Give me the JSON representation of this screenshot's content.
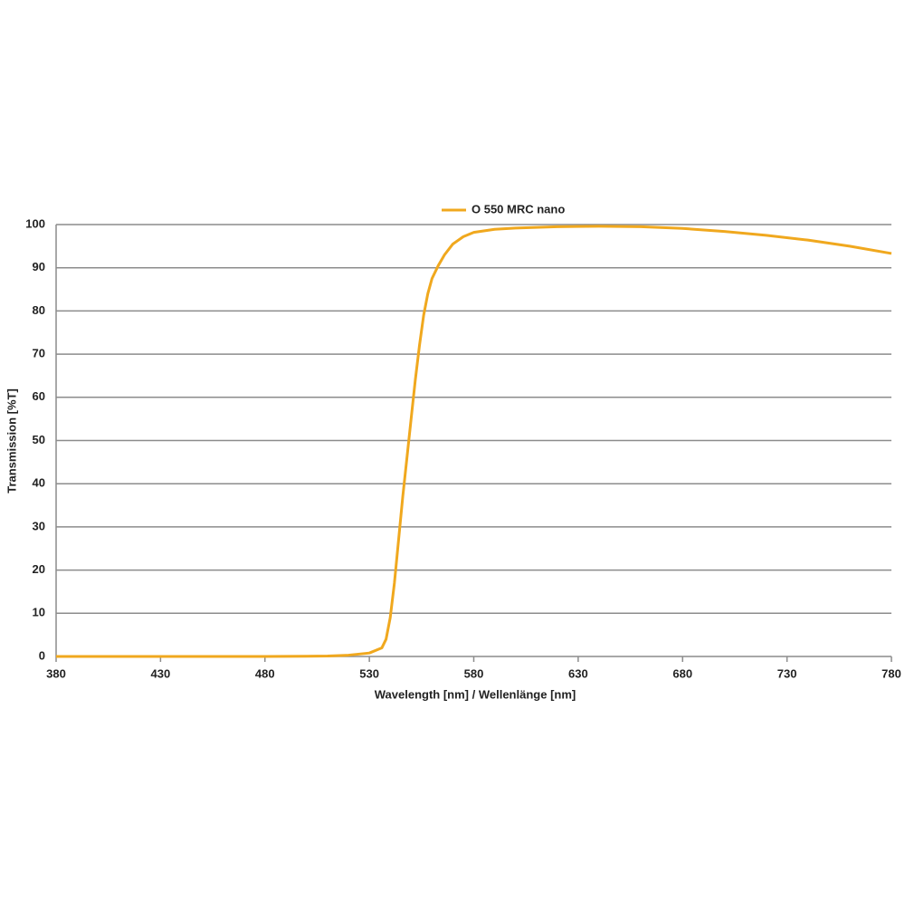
{
  "chart_data": {
    "type": "line",
    "x_label": "Wavelength [nm] / Wellenlänge [nm]",
    "y_label": "Transmission [%T]",
    "x": [
      380,
      400,
      420,
      440,
      460,
      480,
      500,
      510,
      520,
      530,
      536,
      538,
      540,
      542,
      544,
      546,
      548,
      550,
      552,
      554,
      556,
      558,
      560,
      563,
      566,
      570,
      575,
      580,
      590,
      600,
      620,
      640,
      660,
      680,
      700,
      720,
      740,
      760,
      780
    ],
    "series": [
      {
        "name": "O 550 MRC nano",
        "color": "#f0a81e",
        "values": [
          0,
          0,
          0,
          0,
          0,
          0,
          0.05,
          0.1,
          0.3,
          0.8,
          2,
          4,
          9,
          17,
          27,
          37,
          46,
          55,
          64,
          72,
          79,
          84,
          87.5,
          90.5,
          93,
          95.5,
          97.2,
          98.2,
          98.9,
          99.2,
          99.5,
          99.6,
          99.5,
          99.1,
          98.4,
          97.5,
          96.4,
          95,
          93.3
        ]
      }
    ],
    "xlim": [
      380,
      780
    ],
    "xticks": [
      380,
      430,
      480,
      530,
      580,
      630,
      680,
      730,
      780
    ],
    "ylim": [
      0,
      100
    ],
    "yticks": [
      0,
      10,
      20,
      30,
      40,
      50,
      60,
      70,
      80,
      90,
      100
    ],
    "grid": true,
    "legend": "top"
  }
}
